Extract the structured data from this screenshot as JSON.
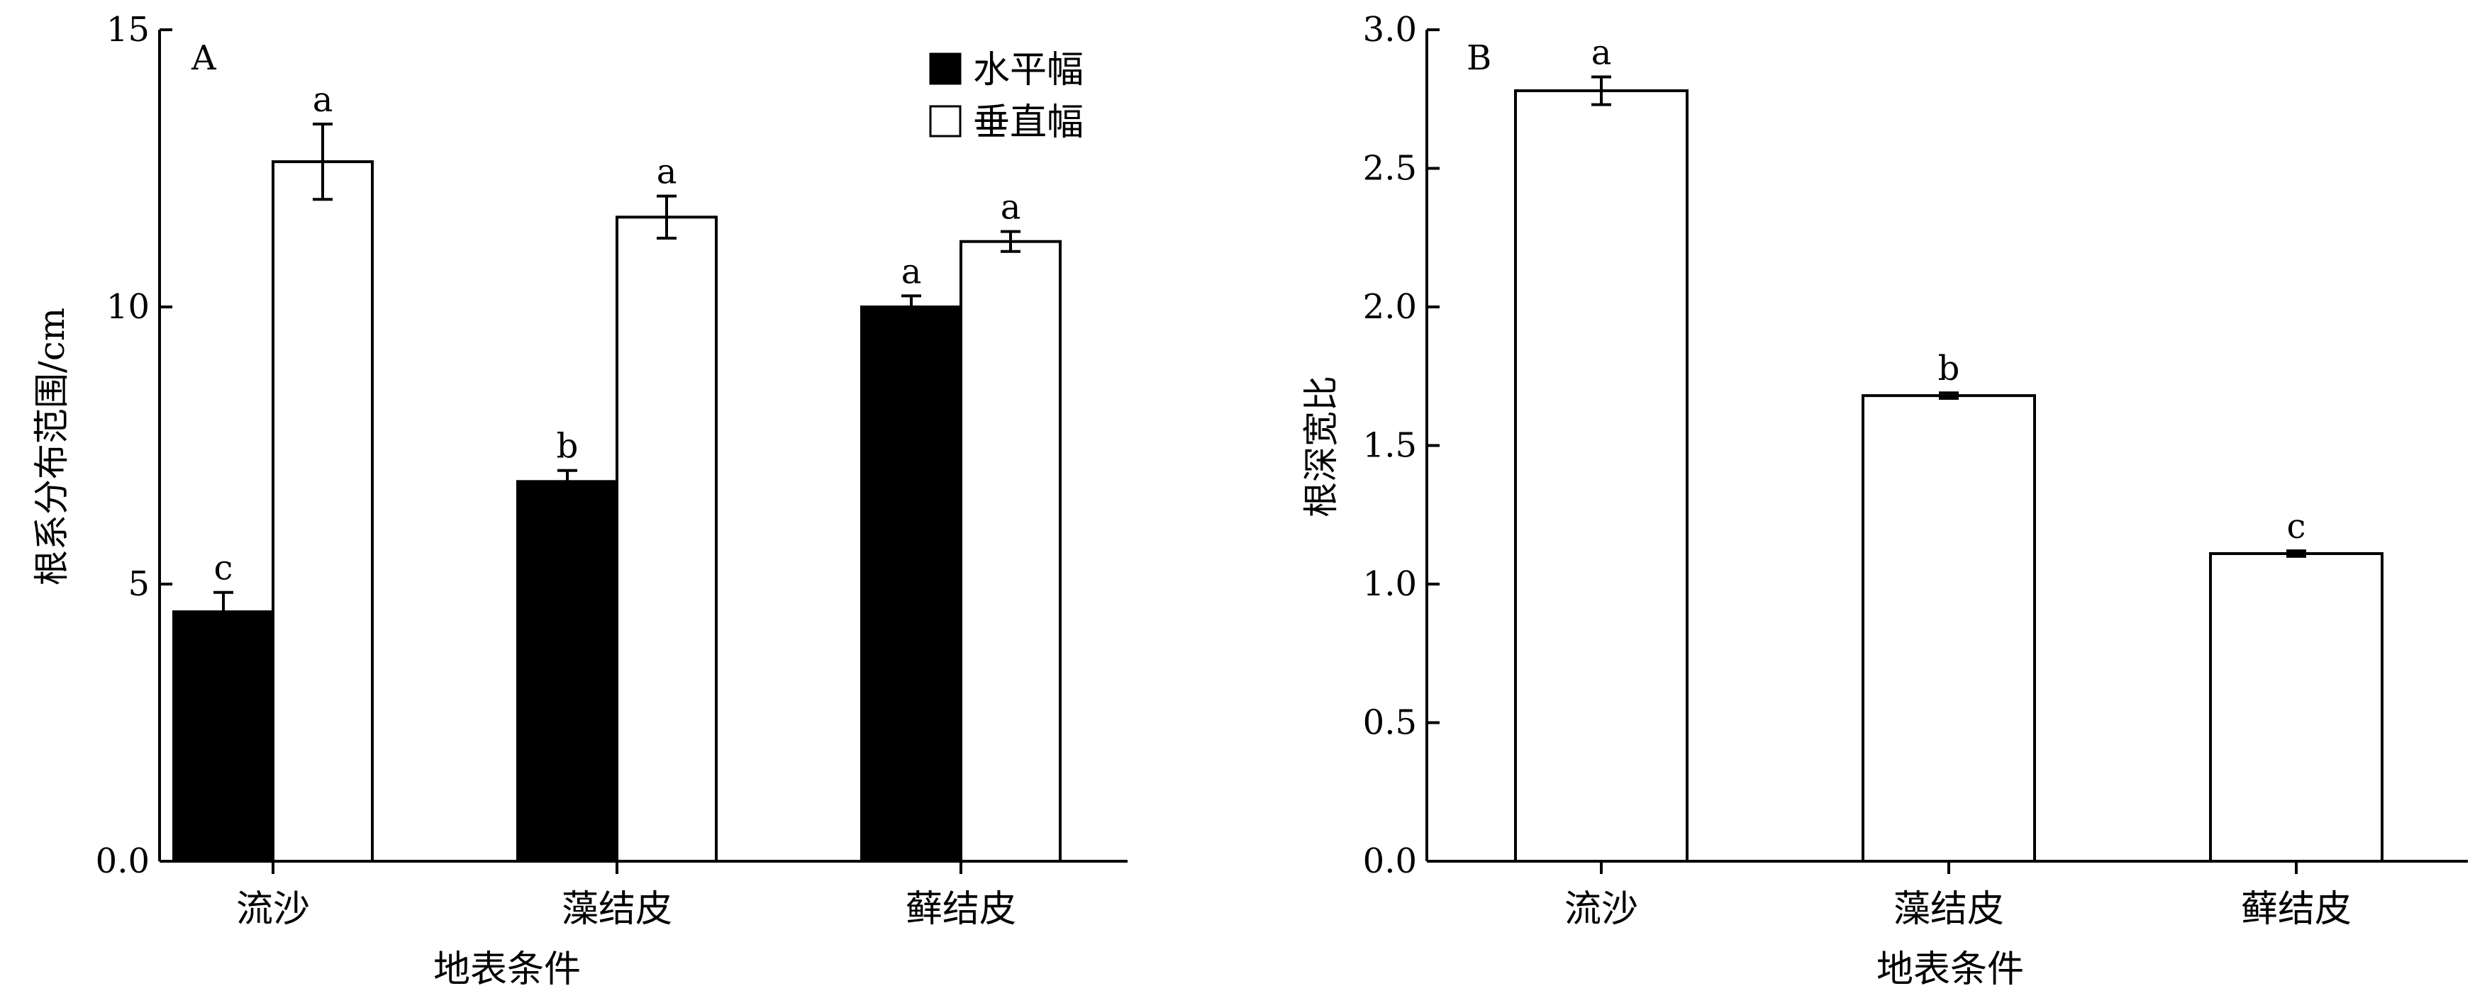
{
  "chart_data": [
    {
      "type": "bar",
      "panel_label": "A",
      "categories": [
        "流沙",
        "藻结皮",
        "藓结皮"
      ],
      "series": [
        {
          "name": "水平幅",
          "fill": "#000000",
          "values": [
            4.5,
            6.85,
            10.0
          ],
          "errors": [
            0.35,
            0.2,
            0.2
          ],
          "letters": [
            "c",
            "b",
            "a"
          ]
        },
        {
          "name": "垂直幅",
          "fill": "#ffffff",
          "values": [
            12.62,
            11.62,
            11.18
          ],
          "errors": [
            0.68,
            0.38,
            0.18
          ],
          "letters": [
            "a",
            "a",
            "a"
          ]
        }
      ],
      "xlabel": "地表条件",
      "ylabel": "根系分布范围/cm",
      "ylim": [
        0,
        15
      ],
      "yticks": [
        "0.0",
        "5",
        "10",
        "15"
      ],
      "legend_position": "top-right",
      "grid": false
    },
    {
      "type": "bar",
      "panel_label": "B",
      "categories": [
        "流沙",
        "藻结皮",
        "藓结皮"
      ],
      "series": [
        {
          "fill": "#ffffff",
          "values": [
            2.78,
            1.68,
            1.11
          ],
          "errors": [
            0.05,
            0.01,
            0.01
          ],
          "letters": [
            "a",
            "b",
            "c"
          ]
        }
      ],
      "xlabel": "地表条件",
      "ylabel": "根深宽比",
      "ylim": [
        0,
        3.0
      ],
      "yticks": [
        "0.0",
        "0.5",
        "1.0",
        "1.5",
        "2.0",
        "2.5",
        "3.0"
      ],
      "grid": false
    }
  ]
}
